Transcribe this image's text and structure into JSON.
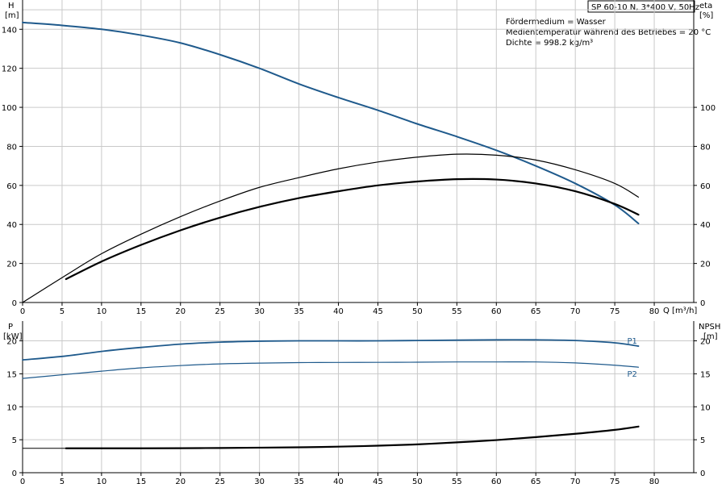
{
  "chart_data": [
    {
      "id": "top",
      "type": "line",
      "title": "SP 60-10 N, 3*400 V, 50Hz",
      "info_lines": [
        "Fördermedium = Wasser",
        "Medientemperatur während des Betriebes = 20 °C",
        "Dichte = 998.2 kg/m³"
      ],
      "xlim": [
        0,
        85
      ],
      "x_ticks": [
        0,
        5,
        10,
        15,
        20,
        25,
        30,
        35,
        40,
        45,
        50,
        55,
        60,
        65,
        70,
        75,
        80
      ],
      "xlabel": "Q [m³/h]",
      "left_axis": {
        "label_line1": "H",
        "label_line2": "[m]",
        "ylim": [
          0,
          155
        ],
        "ticks": [
          0,
          20,
          40,
          60,
          80,
          100,
          120,
          140
        ]
      },
      "right_axis": {
        "label_line1": "eta",
        "label_line2": "[%]",
        "ylim": [
          0,
          155
        ],
        "ticks": [
          0,
          20,
          40,
          60,
          80,
          100
        ]
      },
      "grid": true,
      "series": [
        {
          "axis": "left",
          "color": "#1f5a8c",
          "width": 2,
          "points": [
            [
              0,
              143.5
            ],
            [
              5,
              142
            ],
            [
              10,
              140
            ],
            [
              15,
              137
            ],
            [
              20,
              133
            ],
            [
              25,
              127
            ],
            [
              30,
              120
            ],
            [
              35,
              112
            ],
            [
              40,
              105
            ],
            [
              45,
              98.5
            ],
            [
              50,
              91.5
            ],
            [
              55,
              85
            ],
            [
              60,
              78
            ],
            [
              65,
              70
            ],
            [
              70,
              61
            ],
            [
              75,
              50
            ],
            [
              78,
              40.5
            ]
          ]
        },
        {
          "axis": "right",
          "color": "#000000",
          "width": 1.2,
          "points": [
            [
              0,
              0
            ],
            [
              5.5,
              14
            ],
            [
              10,
              25
            ],
            [
              15,
              35
            ],
            [
              20,
              44
            ],
            [
              25,
              52
            ],
            [
              30,
              59
            ],
            [
              35,
              64
            ],
            [
              40,
              68.5
            ],
            [
              45,
              72
            ],
            [
              50,
              74.5
            ],
            [
              55,
              76
            ],
            [
              60,
              75.5
            ],
            [
              65,
              73
            ],
            [
              70,
              68
            ],
            [
              75,
              61
            ],
            [
              78,
              54
            ]
          ]
        },
        {
          "axis": "right",
          "color": "#000000",
          "width": 2.2,
          "points": [
            [
              5.5,
              12
            ],
            [
              10,
              21
            ],
            [
              15,
              29.5
            ],
            [
              20,
              37
            ],
            [
              25,
              43.5
            ],
            [
              30,
              49
            ],
            [
              35,
              53.5
            ],
            [
              40,
              57
            ],
            [
              45,
              60
            ],
            [
              50,
              62
            ],
            [
              55,
              63.2
            ],
            [
              60,
              63
            ],
            [
              65,
              61
            ],
            [
              70,
              57
            ],
            [
              75,
              50.5
            ],
            [
              78,
              45
            ]
          ]
        }
      ]
    },
    {
      "id": "bottom",
      "type": "line",
      "xlim": [
        0,
        85
      ],
      "x_ticks": [
        0,
        5,
        10,
        15,
        20,
        25,
        30,
        35,
        40,
        45,
        50,
        55,
        60,
        65,
        70,
        75,
        80
      ],
      "left_axis": {
        "label_line1": "P",
        "label_line2": "[kW]",
        "ylim": [
          0,
          23
        ],
        "ticks": [
          0,
          5,
          10,
          15,
          20
        ]
      },
      "right_axis": {
        "label_line1": "NPSH",
        "label_line2": "[m]",
        "ylim": [
          0,
          23
        ],
        "ticks": [
          0,
          5,
          10,
          15,
          20
        ]
      },
      "grid": true,
      "series": [
        {
          "name": "P1",
          "axis": "left",
          "color": "#1f5a8c",
          "width": 1.8,
          "points": [
            [
              0,
              17.1
            ],
            [
              5.5,
              17.7
            ],
            [
              10,
              18.4
            ],
            [
              15,
              19
            ],
            [
              20,
              19.5
            ],
            [
              25,
              19.8
            ],
            [
              30,
              19.95
            ],
            [
              35,
              20
            ],
            [
              40,
              20
            ],
            [
              45,
              20
            ],
            [
              50,
              20.05
            ],
            [
              55,
              20.1
            ],
            [
              60,
              20.15
            ],
            [
              65,
              20.15
            ],
            [
              70,
              20.05
            ],
            [
              75,
              19.7
            ],
            [
              78,
              19.2
            ]
          ]
        },
        {
          "name": "P2",
          "axis": "left",
          "color": "#1f5a8c",
          "width": 1.2,
          "points": [
            [
              0,
              14.3
            ],
            [
              5.5,
              14.9
            ],
            [
              10,
              15.4
            ],
            [
              15,
              15.9
            ],
            [
              20,
              16.25
            ],
            [
              25,
              16.5
            ],
            [
              30,
              16.62
            ],
            [
              35,
              16.7
            ],
            [
              40,
              16.72
            ],
            [
              45,
              16.74
            ],
            [
              50,
              16.76
            ],
            [
              55,
              16.8
            ],
            [
              60,
              16.8
            ],
            [
              65,
              16.8
            ],
            [
              70,
              16.65
            ],
            [
              75,
              16.3
            ],
            [
              78,
              16
            ]
          ]
        },
        {
          "axis": "right",
          "color": "#000000",
          "width": 1,
          "points": [
            [
              0,
              3.7
            ],
            [
              5.5,
              3.7
            ]
          ]
        },
        {
          "axis": "right",
          "color": "#000000",
          "width": 2.2,
          "points": [
            [
              5.5,
              3.7
            ],
            [
              10,
              3.7
            ],
            [
              15,
              3.7
            ],
            [
              20,
              3.72
            ],
            [
              25,
              3.75
            ],
            [
              30,
              3.8
            ],
            [
              35,
              3.85
            ],
            [
              40,
              3.95
            ],
            [
              45,
              4.1
            ],
            [
              50,
              4.3
            ],
            [
              55,
              4.6
            ],
            [
              60,
              4.95
            ],
            [
              65,
              5.4
            ],
            [
              70,
              5.9
            ],
            [
              75,
              6.5
            ],
            [
              78,
              7
            ]
          ]
        }
      ]
    }
  ]
}
